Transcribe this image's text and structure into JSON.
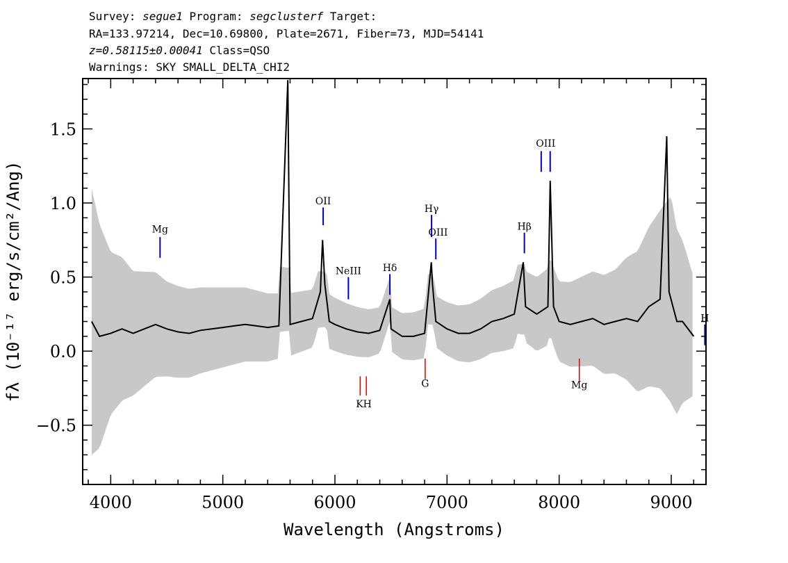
{
  "header": {
    "line1_pre": "Survey: ",
    "line1_survey": "segue1",
    "line1_mid": " Program: ",
    "line1_program": "segclusterf",
    "line1_post": " Target:",
    "line2": "RA=133.97214, Dec=10.69800, Plate=2671, Fiber=73, MJD=54141",
    "line3_z": "z=0.58115±0.00041",
    "line3_class": " Class=QSO",
    "line4": "Warnings: SKY SMALL_DELTA_CHI2"
  },
  "chart_data": {
    "type": "line",
    "title": "",
    "xlabel": "Wavelength (Angstroms)",
    "ylabel": "fλ (10⁻¹⁷ erg/s/cm²/Ang)",
    "xlim": [
      3750,
      9310
    ],
    "ylim": [
      -0.9,
      1.84
    ],
    "x_ticks": [
      4000,
      5000,
      6000,
      7000,
      8000,
      9000
    ],
    "x_tick_labels": [
      "4000",
      "5000",
      "6000",
      "7000",
      "8000",
      "9000"
    ],
    "y_ticks": [
      -0.5,
      0.0,
      0.5,
      1.0,
      1.5
    ],
    "y_tick_labels": [
      "−0.5",
      "0.0",
      "0.5",
      "1.0",
      "1.5"
    ],
    "grid": false,
    "colors": {
      "spectrum": "#000000",
      "error": "#c8c8c8",
      "emission": "#0000cc",
      "absorption": "#dd0000"
    },
    "series": [
      {
        "role": "flux",
        "x": [
          3830,
          3900,
          4000,
          4100,
          4200,
          4300,
          4400,
          4500,
          4600,
          4700,
          4800,
          4900,
          5000,
          5100,
          5200,
          5300,
          5400,
          5500,
          5580,
          5600,
          5700,
          5800,
          5870,
          5890,
          5910,
          5950,
          6000,
          6100,
          6200,
          6300,
          6400,
          6490,
          6500,
          6600,
          6700,
          6800,
          6860,
          6870,
          6900,
          7000,
          7100,
          7200,
          7300,
          7400,
          7500,
          7600,
          7680,
          7700,
          7800,
          7900,
          7920,
          7950,
          8000,
          8100,
          8200,
          8300,
          8400,
          8500,
          8600,
          8700,
          8800,
          8900,
          8960,
          8980,
          9050,
          9100,
          9200
        ],
        "y": [
          0.2,
          0.1,
          0.12,
          0.15,
          0.12,
          0.15,
          0.18,
          0.15,
          0.13,
          0.12,
          0.14,
          0.15,
          0.16,
          0.17,
          0.18,
          0.17,
          0.16,
          0.17,
          1.83,
          0.18,
          0.2,
          0.22,
          0.4,
          0.75,
          0.45,
          0.2,
          0.18,
          0.15,
          0.13,
          0.12,
          0.14,
          0.35,
          0.15,
          0.1,
          0.1,
          0.12,
          0.6,
          0.45,
          0.2,
          0.15,
          0.12,
          0.12,
          0.15,
          0.2,
          0.22,
          0.25,
          0.6,
          0.3,
          0.25,
          0.3,
          1.15,
          0.3,
          0.2,
          0.18,
          0.2,
          0.22,
          0.18,
          0.2,
          0.22,
          0.2,
          0.3,
          0.35,
          1.45,
          0.4,
          0.2,
          0.2,
          0.1
        ]
      },
      {
        "role": "error-envelope",
        "x": [
          3830,
          4000,
          4200,
          4500,
          5000,
          5500,
          6000,
          6500,
          7000,
          7500,
          8000,
          8500,
          8900,
          9000,
          9200
        ],
        "y_half_width": [
          0.9,
          0.55,
          0.42,
          0.32,
          0.27,
          0.22,
          0.18,
          0.15,
          0.18,
          0.22,
          0.27,
          0.35,
          0.6,
          0.7,
          0.4
        ]
      }
    ],
    "annotations": [
      {
        "label": "Mg",
        "x": 4440,
        "kind": "emission",
        "y_bottom": 0.63,
        "y_top": 0.77
      },
      {
        "label": "OII",
        "x": 5895,
        "kind": "emission",
        "y_bottom": 0.85,
        "y_top": 0.97
      },
      {
        "label": "NeIII",
        "x": 6120,
        "kind": "emission",
        "y_bottom": 0.35,
        "y_top": 0.5
      },
      {
        "label": "Hδ",
        "x": 6490,
        "kind": "emission",
        "y_bottom": 0.38,
        "y_top": 0.52
      },
      {
        "label": "Hγ",
        "x": 6862,
        "kind": "emission",
        "y_bottom": 0.77,
        "y_top": 0.92
      },
      {
        "label": "OIII",
        "x": 6900,
        "kind": "emission",
        "y_bottom": 0.62,
        "y_top": 0.76
      },
      {
        "label": "Hβ",
        "x": 7690,
        "kind": "emission",
        "y_bottom": 0.66,
        "y_top": 0.8
      },
      {
        "label": "OIII",
        "x": 7840,
        "kind": "emission",
        "y_bottom": 1.21,
        "y_top": 1.35
      },
      {
        "label": "OIII",
        "x": 7920,
        "kind": "emission",
        "y_bottom": 1.21,
        "y_top": 1.35
      },
      {
        "label": "Hα",
        "x": 9300,
        "kind": "emission",
        "y_bottom": 0.04,
        "y_top": 0.18
      },
      {
        "label": "K",
        "x": 6225,
        "kind": "absorption",
        "y_bottom": -0.3,
        "y_top": -0.17
      },
      {
        "label": "H",
        "x": 6280,
        "kind": "absorption",
        "y_bottom": -0.3,
        "y_top": -0.17
      },
      {
        "label": "G",
        "x": 6805,
        "kind": "absorption",
        "y_bottom": -0.19,
        "y_top": -0.05
      },
      {
        "label": "Mg",
        "x": 8180,
        "kind": "absorption",
        "y_bottom": -0.2,
        "y_top": -0.05
      }
    ],
    "annotation_labels": [
      {
        "text": "Mg",
        "x": 4440,
        "y": 0.8
      },
      {
        "text": "OII",
        "x": 5895,
        "y": 0.99
      },
      {
        "text": "NeIII",
        "x": 6120,
        "y": 0.52
      },
      {
        "text": "Hδ",
        "x": 6490,
        "y": 0.54
      },
      {
        "text": "Hγ",
        "x": 6862,
        "y": 0.94
      },
      {
        "text": "OIII",
        "x": 6920,
        "y": 0.78
      },
      {
        "text": "Hβ",
        "x": 7690,
        "y": 0.82
      },
      {
        "text": "OIII",
        "x": 7880,
        "y": 1.38
      },
      {
        "text": "H",
        "x": 9300,
        "y": 0.2
      },
      {
        "text": "K",
        "x": 6220,
        "y": -0.38
      },
      {
        "text": "H",
        "x": 6290,
        "y": -0.38
      },
      {
        "text": "G",
        "x": 6805,
        "y": -0.24
      },
      {
        "text": "Mg",
        "x": 8180,
        "y": -0.25
      }
    ]
  }
}
